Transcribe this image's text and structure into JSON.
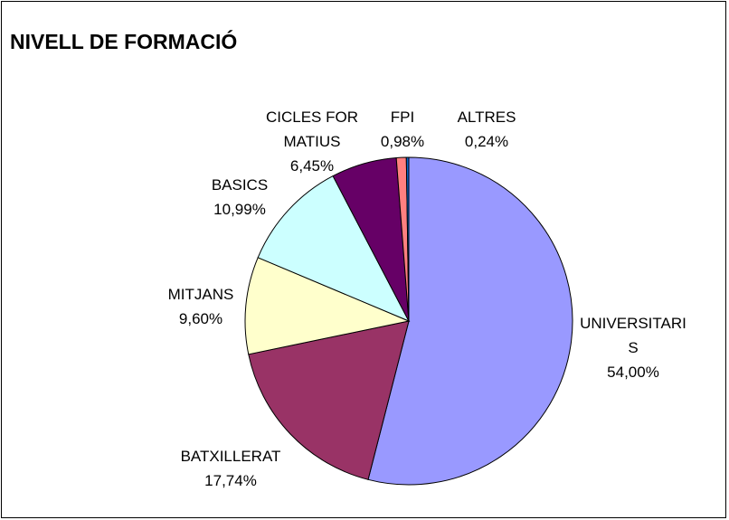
{
  "chart_data": {
    "type": "pie",
    "title": "NIVELL DE FORMACIÓ",
    "categories": [
      "UNIVERSITARIS",
      "BATXILLERAT",
      "MITJANS",
      "BASICS",
      "CICLES FORMATIUS",
      "FPI",
      "ALTRES"
    ],
    "values": [
      54.0,
      17.74,
      9.6,
      10.99,
      6.45,
      0.98,
      0.24
    ],
    "value_labels": [
      "54,00%",
      "17,74%",
      "9,60%",
      "10,99%",
      "6,45%",
      "0,98%",
      "0,24%"
    ],
    "colors": [
      "#9999ff",
      "#993366",
      "#ffffcc",
      "#ccffff",
      "#660066",
      "#ff8080",
      "#0066cc"
    ]
  }
}
